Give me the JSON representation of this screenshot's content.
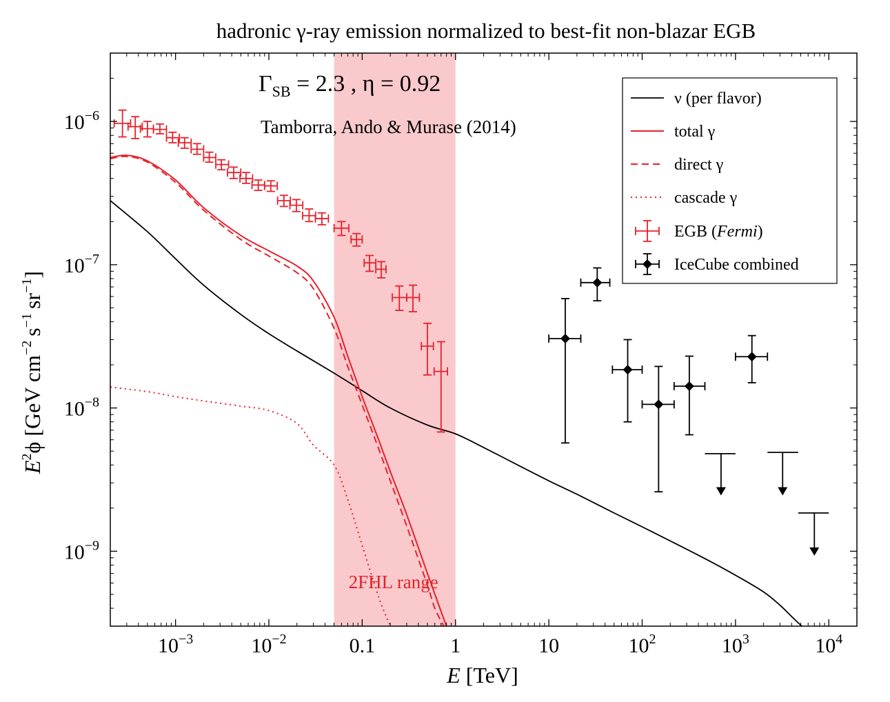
{
  "chart_data": {
    "type": "line",
    "title": "hadronic γ-ray emission normalized to best-fit non-blazar EGB",
    "xlabel": {
      "italic": "E",
      "rest": " [TeV]"
    },
    "ylabel": {
      "italic": "E",
      "sup": "2",
      "rest": "ϕ [GeV cm",
      "unit_parts": [
        "−2",
        "s",
        "−1",
        "sr",
        "−1"
      ]
    },
    "x_scale": "log",
    "y_scale": "log",
    "xlim": [
      0.0002,
      20000
    ],
    "ylim": [
      3e-10,
      3e-06
    ],
    "x_ticks": [
      {
        "value": 0.001,
        "base": "10",
        "exp": "−3"
      },
      {
        "value": 0.01,
        "base": "10",
        "exp": "−2"
      },
      {
        "value": 0.1,
        "base": "0.1",
        "exp": ""
      },
      {
        "value": 1,
        "base": "1",
        "exp": ""
      },
      {
        "value": 10,
        "base": "10",
        "exp": ""
      },
      {
        "value": 100,
        "base": "10",
        "exp": "2"
      },
      {
        "value": 1000,
        "base": "10",
        "exp": "3"
      },
      {
        "value": 10000,
        "base": "10",
        "exp": "4"
      }
    ],
    "y_ticks": [
      {
        "value": 1e-09,
        "base": "10",
        "exp": "−9"
      },
      {
        "value": 1e-08,
        "base": "10",
        "exp": "−8"
      },
      {
        "value": 1e-07,
        "base": "10",
        "exp": "−7"
      },
      {
        "value": 1e-06,
        "base": "10",
        "exp": "−6"
      }
    ],
    "band": {
      "x_range": [
        0.05,
        1
      ],
      "label": "2FHL range",
      "color": "#f9c9cc"
    },
    "annotations": {
      "params": "Γ",
      "params_sub": "SB",
      "params_rest": " = 2.3 , η = 0.92",
      "reference": "Tamborra, Ando & Murase (2014)"
    },
    "series": [
      {
        "name": "ν (per flavor)",
        "style": "solid",
        "color": "#000000",
        "x": [
          0.0002,
          0.0005,
          0.001,
          0.002,
          0.005,
          0.01,
          0.02,
          0.05,
          0.1,
          0.2,
          0.5,
          1,
          2,
          5,
          10,
          20,
          50,
          100,
          200,
          500,
          1000,
          2000,
          3000,
          4000,
          5000,
          5500
        ],
        "y": [
          2.8e-07,
          1.7e-07,
          1.1e-07,
          7.2e-08,
          4.5e-08,
          3.3e-08,
          2.5e-08,
          1.75e-08,
          1.32e-08,
          1e-08,
          7.6e-09,
          6.6e-09,
          5.3e-09,
          3.9e-09,
          3.1e-09,
          2.5e-09,
          1.85e-09,
          1.48e-09,
          1.18e-09,
          8.7e-10,
          6.8e-10,
          5.2e-10,
          4.2e-10,
          3.5e-10,
          3.05e-10,
          2.9e-10
        ]
      },
      {
        "name": "total γ",
        "style": "solid",
        "color": "#e8202a",
        "x": [
          0.0002,
          0.0003,
          0.0005,
          0.001,
          0.002,
          0.005,
          0.01,
          0.02,
          0.03,
          0.05,
          0.07,
          0.1,
          0.15,
          0.2,
          0.3,
          0.5,
          0.7,
          0.8
        ],
        "y": [
          5.6e-07,
          5.8e-07,
          5.3e-07,
          3.9e-07,
          2.5e-07,
          1.6e-07,
          1.25e-07,
          9.8e-08,
          7.7e-08,
          4.3e-08,
          2.3e-08,
          1.2e-08,
          6e-09,
          3.6e-09,
          1.8e-09,
          7e-10,
          3.8e-10,
          3e-10
        ]
      },
      {
        "name": "direct γ",
        "style": "dashed",
        "color": "#e8202a",
        "x": [
          0.0002,
          0.0003,
          0.0005,
          0.001,
          0.002,
          0.005,
          0.01,
          0.02,
          0.03,
          0.05,
          0.07,
          0.1,
          0.15,
          0.2,
          0.3,
          0.5,
          0.6,
          0.75
        ],
        "y": [
          5.5e-07,
          5.7e-07,
          5.2e-07,
          3.75e-07,
          2.4e-07,
          1.5e-07,
          1.15e-07,
          8.8e-08,
          6.8e-08,
          3.6e-08,
          1.95e-08,
          1.05e-08,
          5.2e-09,
          3.1e-09,
          1.5e-09,
          5.8e-10,
          4e-10,
          3e-10
        ]
      },
      {
        "name": "cascade γ",
        "style": "dotted",
        "color": "#e8202a",
        "x": [
          0.0002,
          0.0005,
          0.001,
          0.002,
          0.005,
          0.01,
          0.02,
          0.03,
          0.05,
          0.07,
          0.1,
          0.15,
          0.2
        ],
        "y": [
          1.4e-08,
          1.3e-08,
          1.2e-08,
          1.12e-08,
          1.03e-08,
          9.6e-09,
          7.8e-09,
          5.5e-09,
          4e-09,
          2.3e-09,
          1.1e-09,
          4.8e-10,
          3e-10
        ]
      }
    ],
    "egb_points": {
      "name": "EGB (",
      "name_italic": "Fermi",
      "name_end": ")",
      "color": "#e8202a",
      "points": [
        {
          "x": 0.00027,
          "y": 9.7e-07,
          "xlo": 0.00022,
          "xhi": 0.00033,
          "ylo": 7.8e-07,
          "yhi": 1.2e-06
        },
        {
          "x": 0.00037,
          "y": 9.2e-07,
          "xlo": 0.00031,
          "xhi": 0.00044,
          "ylo": 7.6e-07,
          "yhi": 1.08e-06
        },
        {
          "x": 0.0005,
          "y": 8.9e-07,
          "xlo": 0.00042,
          "xhi": 0.00058,
          "ylo": 7.8e-07,
          "yhi": 1e-06
        },
        {
          "x": 0.00068,
          "y": 8.8e-07,
          "xlo": 0.00058,
          "xhi": 0.0008,
          "ylo": 8.2e-07,
          "yhi": 9.6e-07
        },
        {
          "x": 0.00093,
          "y": 7.7e-07,
          "xlo": 0.0008,
          "xhi": 0.0011,
          "ylo": 7.1e-07,
          "yhi": 8.4e-07
        },
        {
          "x": 0.00125,
          "y": 7.1e-07,
          "xlo": 0.00107,
          "xhi": 0.00147,
          "ylo": 6.5e-07,
          "yhi": 7.7e-07
        },
        {
          "x": 0.0017,
          "y": 6.4e-07,
          "xlo": 0.00147,
          "xhi": 0.002,
          "ylo": 5.9e-07,
          "yhi": 7e-07
        },
        {
          "x": 0.0023,
          "y": 5.6e-07,
          "xlo": 0.002,
          "xhi": 0.0027,
          "ylo": 5.2e-07,
          "yhi": 6.1e-07
        },
        {
          "x": 0.0031,
          "y": 5e-07,
          "xlo": 0.0027,
          "xhi": 0.0037,
          "ylo": 4.6e-07,
          "yhi": 5.4e-07
        },
        {
          "x": 0.0042,
          "y": 4.4e-07,
          "xlo": 0.0036,
          "xhi": 0.005,
          "ylo": 4e-07,
          "yhi": 4.8e-07
        },
        {
          "x": 0.0057,
          "y": 4e-07,
          "xlo": 0.0049,
          "xhi": 0.0067,
          "ylo": 3.7e-07,
          "yhi": 4.4e-07
        },
        {
          "x": 0.0077,
          "y": 3.6e-07,
          "xlo": 0.0066,
          "xhi": 0.009,
          "ylo": 3.3e-07,
          "yhi": 3.9e-07
        },
        {
          "x": 0.0105,
          "y": 3.55e-07,
          "xlo": 0.009,
          "xhi": 0.0123,
          "ylo": 3.25e-07,
          "yhi": 3.85e-07
        },
        {
          "x": 0.0145,
          "y": 2.8e-07,
          "xlo": 0.0124,
          "xhi": 0.017,
          "ylo": 2.55e-07,
          "yhi": 3.05e-07
        },
        {
          "x": 0.0197,
          "y": 2.6e-07,
          "xlo": 0.0168,
          "xhi": 0.0231,
          "ylo": 2.35e-07,
          "yhi": 2.85e-07
        },
        {
          "x": 0.027,
          "y": 2.2e-07,
          "xlo": 0.023,
          "xhi": 0.0317,
          "ylo": 2e-07,
          "yhi": 2.45e-07
        },
        {
          "x": 0.037,
          "y": 2.1e-07,
          "xlo": 0.0315,
          "xhi": 0.0435,
          "ylo": 1.9e-07,
          "yhi": 2.3e-07
        },
        {
          "x": 0.06,
          "y": 1.8e-07,
          "xlo": 0.05,
          "xhi": 0.072,
          "ylo": 1.6e-07,
          "yhi": 2e-07
        },
        {
          "x": 0.087,
          "y": 1.5e-07,
          "xlo": 0.076,
          "xhi": 0.1,
          "ylo": 1.35e-07,
          "yhi": 1.65e-07
        },
        {
          "x": 0.12,
          "y": 1.03e-07,
          "xlo": 0.105,
          "xhi": 0.14,
          "ylo": 9e-08,
          "yhi": 1.16e-07
        },
        {
          "x": 0.16,
          "y": 9.3e-08,
          "xlo": 0.14,
          "xhi": 0.18,
          "ylo": 8.1e-08,
          "yhi": 1.05e-07
        },
        {
          "x": 0.25,
          "y": 5.9e-08,
          "xlo": 0.21,
          "xhi": 0.3,
          "ylo": 4.8e-08,
          "yhi": 7.1e-08
        },
        {
          "x": 0.35,
          "y": 5.9e-08,
          "xlo": 0.3,
          "xhi": 0.41,
          "ylo": 4.7e-08,
          "yhi": 7.2e-08
        },
        {
          "x": 0.5,
          "y": 2.7e-08,
          "xlo": 0.43,
          "xhi": 0.58,
          "ylo": 1.7e-08,
          "yhi": 3.9e-08
        },
        {
          "x": 0.7,
          "y": 1.8e-08,
          "xlo": 0.59,
          "xhi": 0.82,
          "ylo": 6.8e-09,
          "yhi": 2.9e-08
        }
      ]
    },
    "icecube_points": {
      "name": "IceCube combined",
      "color": "#000000",
      "points": [
        {
          "x": 15,
          "y": 3.05e-08,
          "xlo": 10,
          "xhi": 22,
          "ylo": 5.7e-09,
          "yhi": 5.8e-08
        },
        {
          "x": 33,
          "y": 7.5e-08,
          "xlo": 22,
          "xhi": 45,
          "ylo": 5.6e-08,
          "yhi": 9.5e-08
        },
        {
          "x": 70,
          "y": 1.85e-08,
          "xlo": 48,
          "xhi": 100,
          "ylo": 8e-09,
          "yhi": 3e-08
        },
        {
          "x": 150,
          "y": 1.06e-08,
          "xlo": 100,
          "xhi": 220,
          "ylo": 2.6e-09,
          "yhi": 1.95e-08
        },
        {
          "x": 320,
          "y": 1.42e-08,
          "xlo": 220,
          "xhi": 470,
          "ylo": 6.5e-09,
          "yhi": 2.3e-08
        },
        {
          "x": 1500,
          "y": 2.28e-08,
          "xlo": 1000,
          "xhi": 2200,
          "ylo": 1.5e-08,
          "yhi": 3.2e-08
        }
      ],
      "upper_limits": [
        {
          "x": 700,
          "y": 4.8e-09,
          "xlo": 470,
          "xhi": 1000,
          "arrow_to": 2.45e-09
        },
        {
          "x": 3200,
          "y": 4.9e-09,
          "xlo": 2200,
          "xhi": 4700,
          "arrow_to": 2.45e-09
        },
        {
          "x": 7000,
          "y": 1.85e-09,
          "xlo": 4700,
          "xhi": 10000,
          "arrow_to": 9.3e-10
        }
      ]
    },
    "legend": {
      "placement": "top-right",
      "entries": [
        "ν (per flavor)",
        "total γ",
        "direct γ",
        "cascade γ",
        "EGB (Fermi)",
        "IceCube combined"
      ]
    }
  }
}
